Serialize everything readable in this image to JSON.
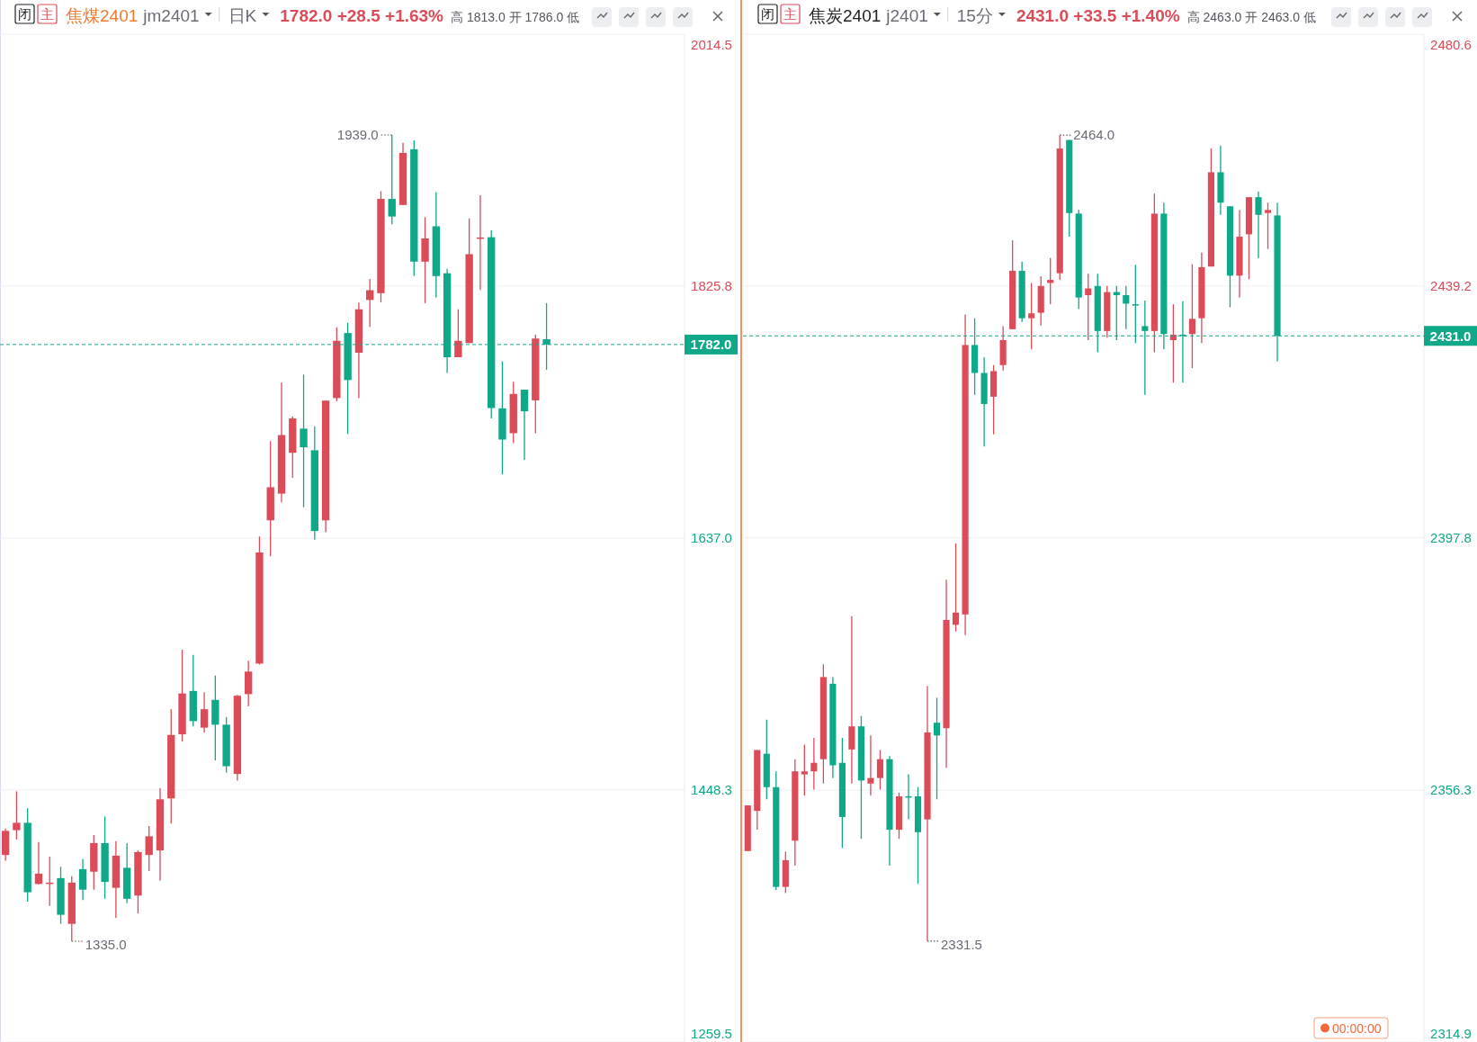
{
  "chart_data": [
    {
      "type": "candlestick",
      "title": "焦煤2401",
      "subtitle": "jm2401",
      "annotations": [
        "闭",
        "主",
        "日K",
        "1782.0 +28.5 +1.63%",
        "高 1813.0 开 1786.0 低",
        "1939.0",
        "1335.0"
      ],
      "categories": [
        null,
        null,
        null,
        null,
        null,
        null,
        null,
        null,
        null,
        null,
        null,
        null,
        null,
        null,
        null,
        null,
        null,
        null,
        null,
        null,
        null,
        null,
        null,
        null,
        null,
        null,
        null,
        null,
        null,
        null,
        null,
        null,
        null,
        null,
        null,
        null,
        null,
        null,
        null,
        null,
        null,
        null,
        null,
        null,
        null,
        null,
        null,
        null,
        null,
        null,
        null,
        null,
        null,
        null,
        null,
        null,
        null,
        null,
        null,
        null,
        null,
        null
      ],
      "ohlc": [
        [
          1399.6,
          1419.4,
          1395.3,
          1417.7
        ],
        [
          1418.2,
          1447.3,
          1411.2,
          1423.7
        ],
        [
          1423.7,
          1434.6,
          1364.7,
          1371.7
        ],
        [
          1377.9,
          1409.3,
          1377.4,
          1385.6
        ],
        [
          1378.4,
          1398.4,
          1361.5,
          1378.9
        ],
        [
          1382.3,
          1390.7,
          1348.0,
          1354.8
        ],
        [
          1348.0,
          1383.7,
          1335.0,
          1378.9
        ],
        [
          1389.0,
          1396.7,
          1365.9,
          1373.6
        ],
        [
          1387.1,
          1414.6,
          1373.6,
          1408.5
        ],
        [
          1408.5,
          1428.5,
          1366.8,
          1379.4
        ],
        [
          1375.0,
          1410.0,
          1352.4,
          1399.1
        ],
        [
          1390.0,
          1408.5,
          1363.5,
          1366.8
        ],
        [
          1369.2,
          1403.2,
          1355.8,
          1401.8
        ],
        [
          1399.6,
          1421.3,
          1387.6,
          1413.6
        ],
        [
          1403.0,
          1449.7,
          1380.3,
          1441.3
        ],
        [
          1442.0,
          1508.8,
          1423.2,
          1489.5
        ],
        [
          1490.0,
          1553.4,
          1484.7,
          1520.6
        ],
        [
          1522.5,
          1549.5,
          1496.0,
          1499.9
        ],
        [
          1495.0,
          1521.6,
          1491.2,
          1508.8
        ],
        [
          1515.8,
          1534.1,
          1470.5,
          1497.2
        ],
        [
          1497.2,
          1503.0,
          1461.3,
          1466.1
        ],
        [
          1460.3,
          1519.6,
          1455.3,
          1518.9
        ],
        [
          1520.1,
          1545.2,
          1511.0,
          1537.0
        ],
        [
          1543.0,
          1638.2,
          1542.3,
          1626.2
        ],
        [
          1650.3,
          1709.6,
          1623.3,
          1675.1
        ],
        [
          1670.3,
          1753.5,
          1663.8,
          1714.2
        ],
        [
          1700.9,
          1728.2,
          1682.1,
          1726.7
        ],
        [
          1719.0,
          1759.5,
          1660.2,
          1705.0
        ],
        [
          1702.8,
          1720.7,
          1635.8,
          1642.3
        ],
        [
          1650.3,
          1740.0,
          1641.4,
          1740.0
        ],
        [
          1741.9,
          1795.0,
          1739.5,
          1784.8
        ],
        [
          1790.6,
          1798.3,
          1714.9,
          1755.4
        ],
        [
          1775.9,
          1813.5,
          1741.9,
          1808.4
        ],
        [
          1815.4,
          1831.1,
          1795.2,
          1822.7
        ],
        [
          1820.5,
          1896.9,
          1813.7,
          1891.1
        ],
        [
          1891.1,
          1939.0,
          1872.1,
          1877.9
        ],
        [
          1886.6,
          1933.1,
          1886.6,
          1925.6
        ],
        [
          1928.3,
          1935.0,
          1833.3,
          1844.1
        ],
        [
          1844.1,
          1877.4,
          1813.0,
          1861.5
        ],
        [
          1870.6,
          1896.2,
          1817.1,
          1833.3
        ],
        [
          1835.4,
          1838.8,
          1760.7,
          1772.5
        ],
        [
          1772.5,
          1808.4,
          1772.5,
          1784.8
        ],
        [
          1783.1,
          1876.4,
          1783.1,
          1849.7
        ],
        [
          1861.2,
          1893.8,
          1822.9,
          1862.2
        ],
        [
          1862.4,
          1867.5,
          1726.7,
          1734.4
        ],
        [
          1734.2,
          1769.4,
          1684.8,
          1710.8
        ],
        [
          1715.6,
          1754.2,
          1708.1,
          1745.0
        ],
        [
          1748.2,
          1748.2,
          1695.6,
          1732.0
        ],
        [
          1740.2,
          1789.6,
          1715.6,
          1786.5
        ],
        [
          1786.0,
          1813.0,
          1763.1,
          1782.0
        ],
        null,
        null,
        null,
        null,
        null,
        null,
        null,
        null,
        null,
        null,
        null,
        null
      ],
      "colors": [
        "#dc4b58",
        "#dc4b58",
        "#0fa888",
        "#dc4b58",
        "#dc4b58",
        "#0fa888",
        "#dc4b58",
        "#0fa888",
        "#dc4b58",
        "#0fa888",
        "#dc4b58",
        "#0fa888",
        "#dc4b58",
        "#dc4b58",
        "#dc4b58",
        "#dc4b58",
        "#dc4b58",
        "#0fa888",
        "#dc4b58",
        "#0fa888",
        "#0fa888",
        "#dc4b58",
        "#dc4b58",
        "#dc4b58",
        "#dc4b58",
        "#dc4b58",
        "#dc4b58",
        "#0fa888",
        "#0fa888",
        "#dc4b58",
        "#dc4b58",
        "#0fa888",
        "#dc4b58",
        "#dc4b58",
        "#dc4b58",
        "#0fa888",
        "#dc4b58",
        "#0fa888",
        "#dc4b58",
        "#0fa888",
        "#0fa888",
        "#dc4b58",
        "#dc4b58",
        "#dc4b58",
        "#0fa888",
        "#0fa888",
        "#dc4b58",
        "#0fa888",
        "#dc4b58",
        "#0fa888",
        null,
        null,
        null,
        null,
        null,
        null,
        null,
        null,
        null,
        null,
        null,
        null
      ],
      "ylim": [
        1259.5,
        2014.5
      ],
      "yticks": [
        {
          "value": 1259.5,
          "label": "1259.5"
        },
        {
          "value": 1448.3,
          "label": "1448.3"
        },
        {
          "value": 1637.0,
          "label": "1637.0"
        },
        {
          "value": 1825.8,
          "label": "1825.8"
        },
        {
          "value": 2014.5,
          "label": "2014.5"
        }
      ],
      "ref_lines": [
        {
          "axis": "y",
          "value": 1782.0,
          "label": "1782.0",
          "color": "#0fa888",
          "line_style": "dashed"
        }
      ],
      "grid": "y"
    },
    {
      "type": "candlestick",
      "title": "焦炭2401",
      "subtitle": "j2401",
      "annotations": [
        "闭",
        "主",
        "15分",
        "2431.0 +33.5 +1.40%",
        "高 2463.0 开 2463.0 低",
        "2464.0",
        "2331.5",
        "00:00:00"
      ],
      "categories": [
        null,
        null,
        null,
        null,
        null,
        null,
        null,
        null,
        null,
        null,
        null,
        null,
        null,
        null,
        null,
        null,
        null,
        null,
        null,
        null,
        null,
        null,
        null,
        null,
        null,
        null,
        null,
        null,
        null,
        null,
        null,
        null,
        null,
        null,
        null,
        null,
        null,
        null,
        null,
        null,
        null,
        null,
        null,
        null,
        null,
        null,
        null,
        null,
        null,
        null,
        null,
        null,
        null,
        null,
        null,
        null,
        null,
        null,
        null,
        null,
        null,
        null,
        null,
        null,
        null,
        null,
        null,
        null,
        null,
        null,
        null,
        null
      ],
      "ohlc": [
        [
          2346.3,
          2353.8,
          2346.3,
          2353.8
        ],
        [
          2352.9,
          2362.9,
          2349.8,
          2362.9
        ],
        [
          2362.3,
          2367.9,
          2354.8,
          2356.8
        ],
        [
          2356.8,
          2359.4,
          2339.9,
          2340.4
        ],
        [
          2340.4,
          2346.2,
          2339.4,
          2344.8
        ],
        [
          2348.0,
          2361.4,
          2343.9,
          2359.4
        ],
        [
          2358.9,
          2363.8,
          2355.4,
          2359.4
        ],
        [
          2359.4,
          2364.9,
          2356.4,
          2360.8
        ],
        [
          2361.4,
          2377.0,
          2357.4,
          2374.9
        ],
        [
          2373.8,
          2374.9,
          2358.3,
          2360.4
        ],
        [
          2360.8,
          2364.9,
          2346.8,
          2351.9
        ],
        [
          2363.0,
          2384.9,
          2357.4,
          2366.8
        ],
        [
          2366.8,
          2368.5,
          2348.3,
          2357.9
        ],
        [
          2357.4,
          2365.3,
          2355.4,
          2358.3
        ],
        [
          2358.3,
          2362.9,
          2356.4,
          2361.4
        ],
        [
          2361.4,
          2361.9,
          2343.9,
          2349.8
        ],
        [
          2349.8,
          2355.9,
          2348.3,
          2355.3
        ],
        [
          2355.3,
          2358.9,
          2351.5,
          2355.2
        ],
        [
          2355.3,
          2356.8,
          2340.9,
          2349.4
        ],
        [
          2351.5,
          2373.4,
          2331.5,
          2365.8
        ],
        [
          2367.4,
          2371.5,
          2354.8,
          2365.3
        ],
        [
          2366.5,
          2390.9,
          2360.0,
          2384.3
        ],
        [
          2383.5,
          2396.9,
          2382.4,
          2385.5
        ],
        [
          2385.2,
          2434.5,
          2381.8,
          2429.5
        ],
        [
          2429.5,
          2433.9,
          2421.3,
          2424.9
        ],
        [
          2424.9,
          2427.5,
          2412.8,
          2419.8
        ],
        [
          2421.0,
          2426.2,
          2414.8,
          2425.2
        ],
        [
          2426.2,
          2432.6,
          2425.3,
          2430.3
        ],
        [
          2432.1,
          2446.7,
          2432.1,
          2441.7
        ],
        [
          2441.7,
          2443.2,
          2433.3,
          2433.9
        ],
        [
          2433.9,
          2439.7,
          2428.8,
          2434.7
        ],
        [
          2434.8,
          2440.8,
          2432.7,
          2439.2
        ],
        [
          2439.7,
          2443.8,
          2436.2,
          2440.2
        ],
        [
          2441.3,
          2464.0,
          2440.2,
          2461.8
        ],
        [
          2463.2,
          2463.2,
          2447.3,
          2451.2
        ],
        [
          2451.1,
          2451.7,
          2435.4,
          2437.3
        ],
        [
          2437.7,
          2441.2,
          2430.3,
          2438.8
        ],
        [
          2439.2,
          2441.2,
          2428.3,
          2431.8
        ],
        [
          2431.8,
          2439.2,
          2430.7,
          2438.2
        ],
        [
          2438.2,
          2439.2,
          2430.3,
          2437.7
        ],
        [
          2437.7,
          2439.2,
          2432.1,
          2436.3
        ],
        [
          2436.2,
          2442.7,
          2429.8,
          2436.1
        ],
        [
          2432.6,
          2436.8,
          2421.3,
          2431.8
        ],
        [
          2431.8,
          2454.4,
          2428.3,
          2451.1
        ],
        [
          2451.1,
          2452.9,
          2428.8,
          2431.3
        ],
        [
          2430.3,
          2436.2,
          2423.3,
          2431.2
        ],
        [
          2431.2,
          2436.7,
          2423.3,
          2431.1
        ],
        [
          2431.3,
          2442.8,
          2425.7,
          2433.8
        ],
        [
          2433.9,
          2444.7,
          2429.8,
          2442.3
        ],
        [
          2442.4,
          2461.8,
          2442.4,
          2457.9
        ],
        [
          2457.9,
          2462.3,
          2450.9,
          2452.9
        ],
        [
          2452.3,
          2452.3,
          2435.7,
          2440.9
        ],
        [
          2440.9,
          2451.7,
          2437.3,
          2447.3
        ],
        [
          2447.7,
          2453.8,
          2440.3,
          2453.8
        ],
        [
          2453.8,
          2454.7,
          2443.8,
          2450.9
        ],
        [
          2451.2,
          2452.9,
          2445.3,
          2451.7
        ],
        [
          2450.8,
          2452.9,
          2426.8,
          2431.0
        ],
        null,
        null,
        null,
        null,
        null,
        null,
        null,
        null,
        null,
        null,
        null,
        null,
        null,
        null,
        null
      ],
      "colors": [
        "#dc4b58",
        "#dc4b58",
        "#0fa888",
        "#0fa888",
        "#dc4b58",
        "#dc4b58",
        "#dc4b58",
        "#dc4b58",
        "#dc4b58",
        "#0fa888",
        "#0fa888",
        "#dc4b58",
        "#0fa888",
        "#dc4b58",
        "#dc4b58",
        "#0fa888",
        "#dc4b58",
        "#0fa888",
        "#0fa888",
        "#dc4b58",
        "#0fa888",
        "#dc4b58",
        "#dc4b58",
        "#dc4b58",
        "#0fa888",
        "#0fa888",
        "#dc4b58",
        "#dc4b58",
        "#dc4b58",
        "#0fa888",
        "#dc4b58",
        "#dc4b58",
        "#dc4b58",
        "#dc4b58",
        "#0fa888",
        "#0fa888",
        "#dc4b58",
        "#0fa888",
        "#dc4b58",
        "#0fa888",
        "#0fa888",
        "#0fa888",
        "#0fa888",
        "#dc4b58",
        "#0fa888",
        "#dc4b58",
        "#0fa888",
        "#dc4b58",
        "#dc4b58",
        "#dc4b58",
        "#0fa888",
        "#0fa888",
        "#dc4b58",
        "#dc4b58",
        "#0fa888",
        "#dc4b58",
        "#0fa888",
        null,
        null,
        null,
        null,
        null,
        null,
        null,
        null,
        null,
        null,
        null,
        null,
        null,
        null,
        null
      ],
      "ylim": [
        2314.9,
        2480.6
      ],
      "yticks": [
        {
          "value": 2314.9,
          "label": "2314.9"
        },
        {
          "value": 2356.3,
          "label": "2356.3"
        },
        {
          "value": 2397.8,
          "label": "2397.8"
        },
        {
          "value": 2439.2,
          "label": "2439.2"
        },
        {
          "value": 2480.6,
          "label": "2480.6"
        }
      ],
      "ref_lines": [
        {
          "axis": "y",
          "value": 2431.0,
          "label": "2431.0",
          "color": "#0fa888",
          "line_style": "dashed"
        }
      ],
      "grid": "y"
    }
  ]
}
